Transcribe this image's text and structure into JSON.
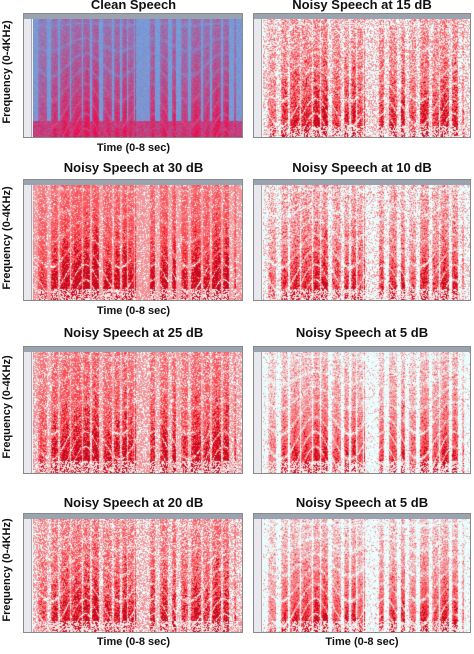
{
  "panels": [
    {
      "id": "clean",
      "title": "Clean Speech",
      "xlabel": "Time (0-8 sec)",
      "ylabel": "Frequency (0-4KHz)",
      "kind": "clean"
    },
    {
      "id": "snr15",
      "title": "Noisy Speech at 15 dB",
      "xlabel": "",
      "ylabel": "",
      "kind": "noisy",
      "snr": 15
    },
    {
      "id": "snr30",
      "title": "Noisy Speech at 30 dB",
      "xlabel": "Time (0-8 sec)",
      "ylabel": "Frequency (0-4KHz)",
      "kind": "noisy",
      "snr": 30
    },
    {
      "id": "snr10",
      "title": "Noisy Speech at 10 dB",
      "xlabel": "",
      "ylabel": "",
      "kind": "noisy",
      "snr": 10
    },
    {
      "id": "snr25",
      "title": "Noisy Speech at 25 dB",
      "xlabel": "",
      "ylabel": "Frequency (0-4KHz)",
      "kind": "noisy",
      "snr": 25
    },
    {
      "id": "snr5a",
      "title": "Noisy Speech at 5 dB",
      "xlabel": "",
      "ylabel": "",
      "kind": "noisy",
      "snr": 5
    },
    {
      "id": "snr20",
      "title": "Noisy Speech at 20 dB",
      "xlabel": "Time (0-8 sec)",
      "ylabel": "Frequency (0-4KHz)",
      "kind": "noisy",
      "snr": 20
    },
    {
      "id": "snr5b",
      "title": "Noisy Speech at 5 dB",
      "xlabel": "Time (0-8 sec)",
      "ylabel": "",
      "kind": "noisy",
      "snr": 5
    }
  ],
  "colors": {
    "clean_background": "#7f9bd6",
    "speech_energy": "#d81a3a",
    "noise_red": "#e8202a",
    "harmonic_white": "#ffffff"
  }
}
